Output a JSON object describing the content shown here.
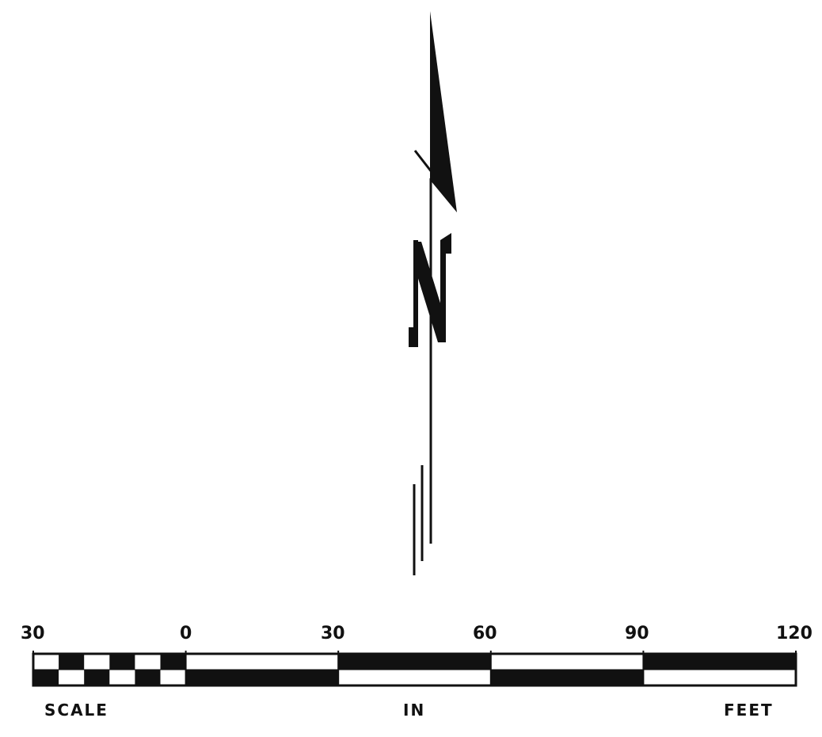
{
  "north_arrow": {
    "letter": "N",
    "icon": "north-arrow-icon"
  },
  "scale_bar": {
    "tick_labels": [
      "30",
      "0",
      "30",
      "60",
      "90",
      "120"
    ],
    "caption": {
      "left": "SCALE",
      "middle": "IN",
      "right": "FEET"
    },
    "unit": "feet",
    "range": [
      -30,
      120
    ],
    "major_interval": 30,
    "subdivision_left_segment": 6
  },
  "colors": {
    "ink": "#111111",
    "paper": "#ffffff"
  }
}
